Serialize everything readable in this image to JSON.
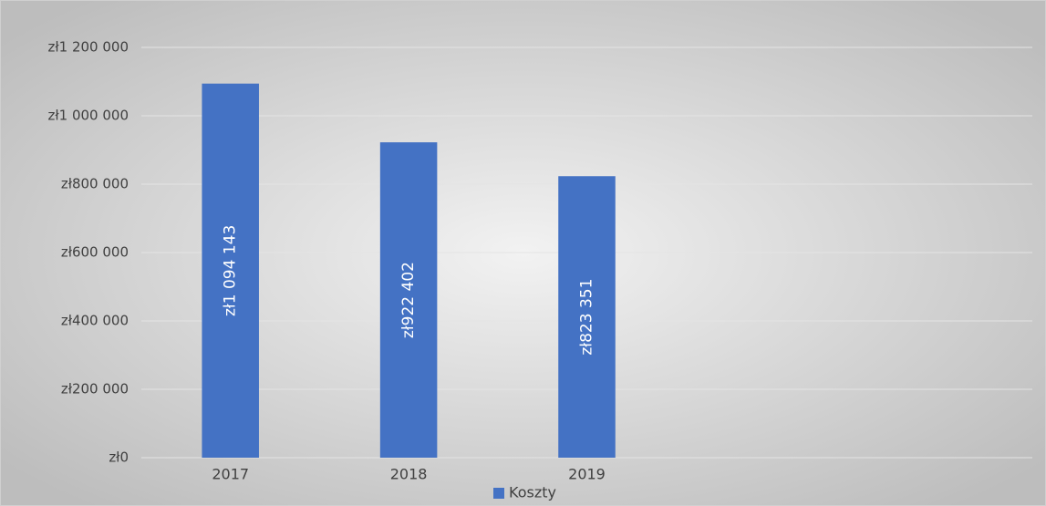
{
  "chart_data": {
    "type": "bar",
    "categories": [
      "2017",
      "2018",
      "2019",
      null,
      null
    ],
    "series": [
      {
        "name": "Koszty",
        "color": "#4472c4",
        "values": [
          1094143,
          922402,
          823351,
          null,
          null
        ],
        "value_labels": [
          "zł1 094 143",
          "zł922 402",
          "zł823 351",
          null,
          null
        ]
      }
    ],
    "ylim": [
      0,
      1200000
    ],
    "yticks": [
      {
        "value": 0,
        "label": "zł0"
      },
      {
        "value": 200000,
        "label": "zł200 000"
      },
      {
        "value": 400000,
        "label": "zł400 000"
      },
      {
        "value": 600000,
        "label": "zł600 000"
      },
      {
        "value": 800000,
        "label": "zł800 000"
      },
      {
        "value": 1000000,
        "label": "zł1 000 000"
      },
      {
        "value": 1200000,
        "label": "zł1 200 000"
      }
    ],
    "grid": true,
    "legend": "bottom"
  }
}
